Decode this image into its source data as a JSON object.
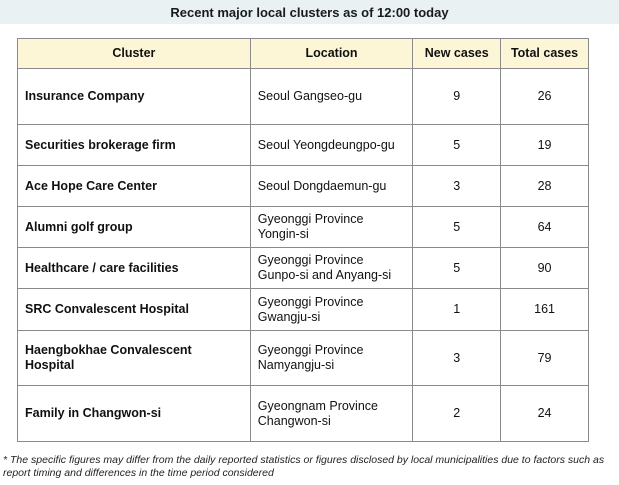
{
  "title": "Recent major local clusters as of 12:00 today",
  "table": {
    "headers": [
      "Cluster",
      "Location",
      "New cases",
      "Total cases"
    ],
    "rows": [
      {
        "cluster": "Insurance Company",
        "location": [
          "Seoul Gangseo-gu"
        ],
        "new": "9",
        "total": "26"
      },
      {
        "cluster": "Securities brokerage firm",
        "location": [
          "Seoul Yeongdeungpo-gu"
        ],
        "new": "5",
        "total": "19"
      },
      {
        "cluster": "Ace Hope Care Center",
        "location": [
          "Seoul Dongdaemun-gu"
        ],
        "new": "3",
        "total": "28"
      },
      {
        "cluster": "Alumni golf group",
        "location": [
          "Gyeonggi Province",
          "Yongin-si"
        ],
        "new": "5",
        "total": "64"
      },
      {
        "cluster": "Healthcare / care facilities",
        "location": [
          "Gyeonggi Province",
          "Gunpo-si and Anyang-si"
        ],
        "new": "5",
        "total": "90"
      },
      {
        "cluster": "SRC Convalescent Hospital",
        "location": [
          "Gyeonggi Province",
          "Gwangju-si"
        ],
        "new": "1",
        "total": "161"
      },
      {
        "cluster": "Haengbokhae Convalescent Hospital",
        "location": [
          "Gyeonggi Province",
          "Namyangju-si"
        ],
        "new": "3",
        "total": "79"
      },
      {
        "cluster": "Family in Changwon-si",
        "location": [
          "Gyeongnam Province",
          "Changwon-si"
        ],
        "new": "2",
        "total": "24"
      }
    ]
  },
  "footnote": "* The specific figures may differ from the daily reported statistics or figures disclosed by local municipalities due to factors such as report timing and differences in the time period considered"
}
